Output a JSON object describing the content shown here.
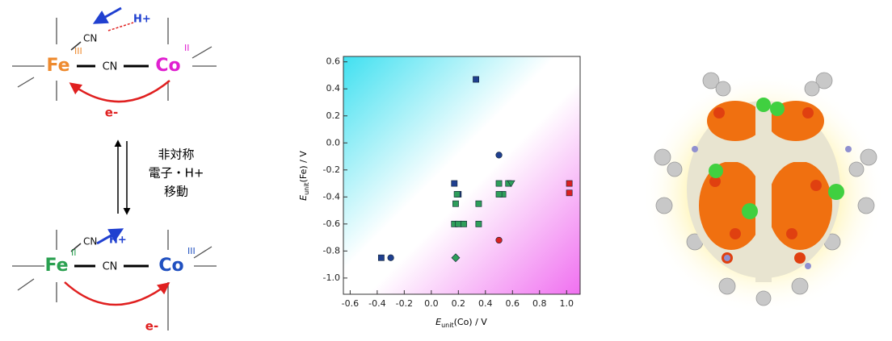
{
  "diagram": {
    "top": {
      "fe": "Fe",
      "fe_ox": "III",
      "cn_top": "CN",
      "h": "H+",
      "cn_bridge": "CN",
      "co": "Co",
      "co_ox": "II",
      "e": "e-"
    },
    "middle": [
      "非対称",
      "電子・H+",
      "移動"
    ],
    "bottom": {
      "fe": "Fe",
      "fe_ox": "II",
      "cn_top": "CN",
      "h": "H+",
      "cn_bridge": "CN",
      "co": "Co",
      "co_ox": "III",
      "e": "e-"
    }
  },
  "chart_data": {
    "type": "scatter",
    "xlabel": {
      "main": "E",
      "sub": "unit",
      "rest": "(Co) / V"
    },
    "ylabel": {
      "main": "E",
      "sub": "unit",
      "rest": "(Fe) / V"
    },
    "xlim": [
      -0.65,
      1.1
    ],
    "ylim": [
      -1.12,
      0.64
    ],
    "xticks": [
      -0.6,
      -0.4,
      -0.2,
      {
        "value": 0,
        "label": "0.0"
      },
      0.2,
      0.4,
      0.6,
      0.8,
      {
        "value": 1,
        "label": "1.0"
      }
    ],
    "yticks": [
      0.6,
      0.4,
      0.2,
      {
        "value": 0,
        "label": "0.0"
      },
      -0.2,
      -0.4,
      -0.6,
      -0.8,
      {
        "value": -1,
        "label": "-1.0"
      }
    ],
    "series": [
      {
        "marker": "square",
        "color": "#1f3f8f",
        "x": [
          0.33,
          0.17,
          0.2,
          -0.37
        ],
        "y": [
          0.47,
          -0.3,
          -0.38,
          -0.85
        ]
      },
      {
        "marker": "circle",
        "color": "#1f3f8f",
        "x": [
          0.5,
          -0.3
        ],
        "y": [
          -0.09,
          -0.85
        ]
      },
      {
        "marker": "square",
        "color": "#2e9e5a",
        "x": [
          0.5,
          0.53,
          0.5,
          0.18,
          0.35,
          0.17,
          0.2,
          0.24,
          0.35,
          0.57,
          0.19
        ],
        "y": [
          -0.3,
          -0.38,
          -0.38,
          -0.45,
          -0.45,
          -0.6,
          -0.6,
          -0.6,
          -0.6,
          -0.3,
          -0.38
        ]
      },
      {
        "marker": "triangle-down",
        "color": "#2e9e5a",
        "x": [
          0.59
        ],
        "y": [
          -0.3
        ]
      },
      {
        "marker": "diamond",
        "color": "#2e9e5a",
        "x": [
          0.18
        ],
        "y": [
          -0.85
        ]
      },
      {
        "marker": "square",
        "color": "#d82020",
        "x": [
          1.02,
          1.02
        ],
        "y": [
          -0.3,
          -0.37
        ]
      },
      {
        "marker": "circle",
        "color": "#d82020",
        "x": [
          0.5
        ],
        "y": [
          -0.72
        ]
      }
    ]
  }
}
